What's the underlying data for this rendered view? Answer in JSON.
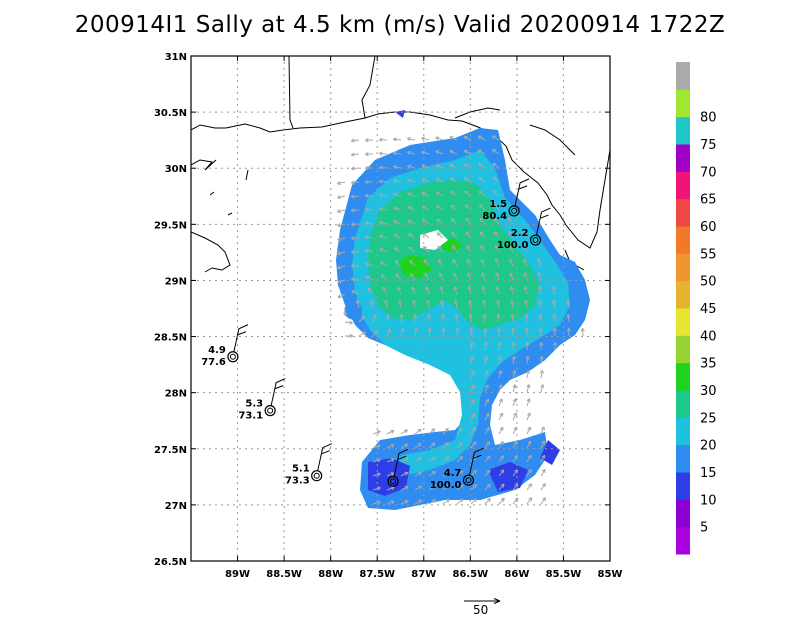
{
  "title": "200914I1 Sally at 4.5 km (m/s) Valid 20200914 1722Z",
  "map": {
    "lat_range": [
      26.5,
      31
    ],
    "lon_range": [
      -89.5,
      -85
    ],
    "lat_ticks": [
      {
        "value": 31,
        "label": "31N"
      },
      {
        "value": 30.5,
        "label": "30.5N"
      },
      {
        "value": 30,
        "label": "30N"
      },
      {
        "value": 29.5,
        "label": "29.5N"
      },
      {
        "value": 29,
        "label": "29N"
      },
      {
        "value": 28.5,
        "label": "28.5N"
      },
      {
        "value": 28,
        "label": "28N"
      },
      {
        "value": 27.5,
        "label": "27.5N"
      },
      {
        "value": 27,
        "label": "27N"
      },
      {
        "value": 26.5,
        "label": "26.5N"
      }
    ],
    "lon_ticks": [
      {
        "value": -89,
        "label": "89W"
      },
      {
        "value": -88.5,
        "label": "88.5W"
      },
      {
        "value": -88,
        "label": "88W"
      },
      {
        "value": -87.5,
        "label": "87.5W"
      },
      {
        "value": -87,
        "label": "87W"
      },
      {
        "value": -86.5,
        "label": "86.5W"
      },
      {
        "value": -86,
        "label": "86W"
      },
      {
        "value": -85.5,
        "label": "85.5W"
      },
      {
        "value": -85,
        "label": "85W"
      }
    ],
    "grid": true,
    "storm_center": {
      "lon": -87.8,
      "lat": 28.75
    }
  },
  "colorbar": {
    "levels": [
      {
        "label": "",
        "color": "#aa00dd"
      },
      {
        "label": "5",
        "color": "#8c00d4"
      },
      {
        "label": "10",
        "color": "#2e3ee6"
      },
      {
        "label": "15",
        "color": "#2f8cf0"
      },
      {
        "label": "20",
        "color": "#20c0e0"
      },
      {
        "label": "25",
        "color": "#1ec88a"
      },
      {
        "label": "30",
        "color": "#1ed21e"
      },
      {
        "label": "35",
        "color": "#96d232"
      },
      {
        "label": "40",
        "color": "#e6e632"
      },
      {
        "label": "45",
        "color": "#e6b42e"
      },
      {
        "label": "50",
        "color": "#f0962e"
      },
      {
        "label": "55",
        "color": "#f07a28"
      },
      {
        "label": "60",
        "color": "#f04646"
      },
      {
        "label": "65",
        "color": "#f01478"
      },
      {
        "label": "70",
        "color": "#a000c8"
      },
      {
        "label": "75",
        "color": "#1ec8c8"
      },
      {
        "label": "80",
        "color": "#a0e632"
      },
      {
        "label": "",
        "color": "#aaaaaa"
      }
    ]
  },
  "stations": [
    {
      "lon": -89.05,
      "lat": 28.32,
      "wind": "4.9",
      "dir": "77.6"
    },
    {
      "lon": -88.65,
      "lat": 27.84,
      "wind": "5.3",
      "dir": "73.1"
    },
    {
      "lon": -88.15,
      "lat": 27.26,
      "wind": "5.1",
      "dir": "73.3"
    },
    {
      "lon": -87.33,
      "lat": 27.21,
      "wind": "",
      "dir": ""
    },
    {
      "lon": -86.52,
      "lat": 27.22,
      "wind": "4.7",
      "dir": "100.0"
    },
    {
      "lon": -86.03,
      "lat": 29.62,
      "wind": "1.5",
      "dir": "80.4"
    },
    {
      "lon": -85.8,
      "lat": 29.36,
      "wind": "2.2",
      "dir": "100.0"
    }
  ],
  "reference_vector": {
    "label": "50"
  }
}
